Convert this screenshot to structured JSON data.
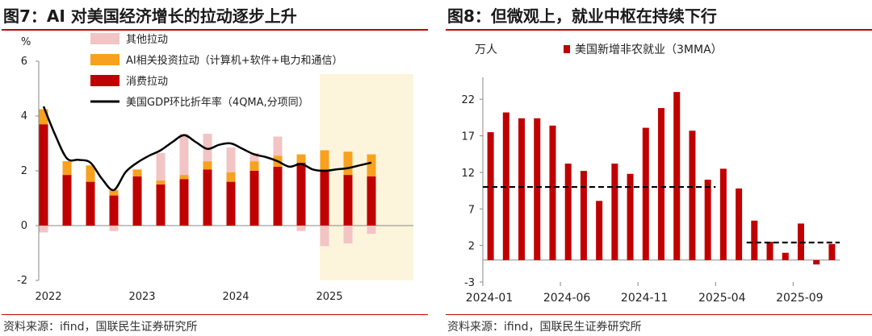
{
  "left": {
    "title": "图7：AI 对美国经济增长的拉动逐步上升",
    "source": "资料来源：ifind，国联民生证券研究所",
    "colors": {
      "other": "#f2c4c4",
      "ai": "#f8a11e",
      "consumption": "#c00000",
      "gdp": "#000000",
      "highlight": "#fdf4dc"
    }
  },
  "right": {
    "title": "图8：但微观上，就业中枢在持续下行",
    "source": "资料来源：ifind，国联民生证券研究所",
    "colors": {
      "bar": "#c00000",
      "trend": "#000000"
    }
  },
  "chart_data": [
    {
      "type": "bar",
      "stacked": true,
      "unit": "%",
      "ylim": [
        -2,
        6
      ],
      "yticks": [
        -2,
        0,
        2,
        4,
        6
      ],
      "x_tick_labels": [
        "2022",
        "2023",
        "2024",
        "2025"
      ],
      "highlight_last_quarters": 3,
      "categories": [
        "2022Q1",
        "2022Q2",
        "2022Q3",
        "2022Q4",
        "2023Q1",
        "2023Q2",
        "2023Q3",
        "2023Q4",
        "2024Q1",
        "2024Q2",
        "2024Q3",
        "2024Q4",
        "2025Q1",
        "2025Q2",
        "2025Q3",
        "2025Q4"
      ],
      "series": [
        {
          "name": "其他拉动",
          "values": [
            -0.25,
            0,
            0,
            -0.2,
            0,
            1.0,
            1.5,
            1.0,
            0.9,
            0.3,
            0.7,
            -0.2,
            -0.75,
            -0.65,
            -0.3,
            0
          ]
        },
        {
          "name": "AI相关投资拉动（计算机+软件+电力和通信）",
          "values": [
            0.55,
            0.5,
            0.6,
            0.2,
            0.25,
            0.15,
            0.15,
            0.3,
            0.35,
            0.35,
            0.4,
            0.3,
            0.7,
            0.85,
            0.8,
            0
          ]
        },
        {
          "name": "消费拉动",
          "values": [
            3.7,
            1.85,
            1.6,
            1.1,
            1.8,
            1.5,
            1.7,
            2.05,
            1.6,
            2.0,
            2.15,
            2.3,
            2.05,
            1.85,
            1.8,
            0
          ]
        }
      ],
      "line": {
        "name": "美国GDP环比折年率（4QMA,分项同）",
        "x": [
          0,
          0.5,
          1,
          1.5,
          2,
          2.5,
          3,
          3.5,
          4,
          4.5,
          5,
          5.5,
          6,
          6.5,
          7,
          7.5,
          8,
          8.5,
          9,
          9.5,
          10,
          10.5,
          11,
          11.5,
          12,
          12.5,
          13,
          13.5,
          14
        ],
        "values": [
          4.35,
          3.3,
          2.45,
          2.4,
          2.3,
          1.7,
          1.3,
          1.95,
          2.3,
          2.55,
          2.75,
          3.05,
          3.3,
          3.05,
          2.8,
          2.95,
          3.0,
          2.8,
          2.6,
          2.5,
          2.35,
          2.15,
          2.25,
          2.05,
          2.0,
          2.05,
          2.1,
          2.2,
          2.3
        ]
      }
    },
    {
      "type": "bar",
      "unit": "万人",
      "ylim": [
        -3,
        25
      ],
      "yticks": [
        -3,
        2,
        7,
        12,
        17,
        22
      ],
      "x_tick_labels": [
        "2024-01",
        "2024-06",
        "2024-11",
        "2025-04",
        "2025-09"
      ],
      "categories": [
        "2024-01",
        "2024-02",
        "2024-03",
        "2024-04",
        "2024-05",
        "2024-06",
        "2024-07",
        "2024-08",
        "2024-09",
        "2024-10",
        "2024-11",
        "2024-12",
        "2025-01",
        "2025-02",
        "2025-03",
        "2025-04",
        "2025-05",
        "2025-06",
        "2025-07",
        "2025-08",
        "2025-09",
        "2025-10",
        "2025-11"
      ],
      "series": [
        {
          "name": "美国新增非农就业（3MMA）",
          "values": [
            17.5,
            20.2,
            19.4,
            19.4,
            18.4,
            13.2,
            12.2,
            8.1,
            13.2,
            11.8,
            18.1,
            20.8,
            23.0,
            17.7,
            11.0,
            12.5,
            9.8,
            5.4,
            2.5,
            1.0,
            5.0,
            -0.6,
            2.2
          ]
        }
      ],
      "trend_lines": [
        {
          "start": "2024-01",
          "end": "2025-03",
          "value": 10.0
        },
        {
          "start": "2025-06",
          "end": "2025-11",
          "value": 2.4
        }
      ]
    }
  ]
}
